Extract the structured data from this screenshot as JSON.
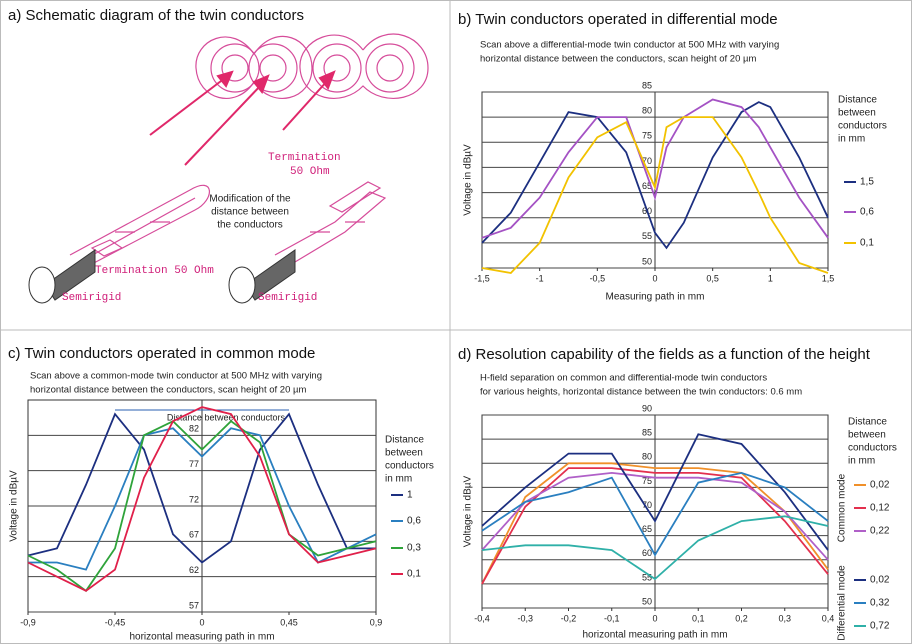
{
  "diagram": {
    "title": "a) Schematic diagram of the twin conductors",
    "labels": {
      "termination_top": [
        "Termination",
        "50 Ohm"
      ],
      "modification": [
        "Modification of the",
        "distance between",
        "the conductors"
      ],
      "termination_bottom": "Termination 50 Ohm",
      "semirigid_left": "Semirigid",
      "semirigid_right": "Semirigid"
    }
  },
  "chart_data": [
    {
      "type": "line",
      "title": "b) Twin conductors operated in differential mode",
      "subtitle": [
        "Scan above a differential-mode twin conductor at 500 MHz with varying",
        "horizontal distance between the conductors, scan height of 20 µm"
      ],
      "xlabel": "Measuring path in mm",
      "ylabel": "Voltage in dBµV",
      "xlim": [
        -1.5,
        1.5
      ],
      "ylim": [
        50,
        85
      ],
      "xticks": [
        {
          "value": -1.5,
          "label": "-1,5"
        },
        -1,
        {
          "value": -0.5,
          "label": "-0,5"
        },
        0,
        {
          "value": 0.5,
          "label": "0,5"
        },
        1,
        {
          "value": 1.5,
          "label": "1,5"
        }
      ],
      "yticks": [
        50,
        55,
        60,
        65,
        70,
        75,
        80,
        85
      ],
      "grid": true,
      "legend_title": [
        "Distance",
        "between",
        "conductors",
        "in mm"
      ],
      "x": [
        -1.5,
        -1.25,
        -1,
        -0.75,
        -0.5,
        -0.25,
        0,
        0.1,
        0.25,
        0.5,
        0.75,
        0.9,
        1,
        1.25,
        1.5
      ],
      "series": [
        {
          "name": "1,5",
          "color": "#1c2f80",
          "values": [
            55,
            61,
            71,
            81,
            80,
            73,
            57,
            54,
            59,
            72,
            81,
            83,
            82,
            72,
            60
          ]
        },
        {
          "name": "0,6",
          "color": "#a452c4",
          "values": [
            56,
            58,
            64,
            73,
            80,
            80,
            64,
            74,
            80,
            83.5,
            82,
            78,
            74,
            64,
            56
          ]
        },
        {
          "name": "0,1",
          "color": "#f2c200",
          "values": [
            50,
            49,
            55,
            68,
            76,
            79,
            66,
            78,
            80,
            80,
            72,
            65,
            60,
            51,
            49
          ]
        }
      ]
    },
    {
      "type": "line",
      "title": "c) Twin conductors operated in common mode",
      "subtitle": [
        "Scan above a common-mode twin conductor at 500 MHz with varying",
        "horizontal distance between the conductors, scan height of 20 µm"
      ],
      "xlabel": "horizontal measuring path in mm",
      "ylabel": "Voltage in dBµV",
      "annotation": "Distance between conductors",
      "xlim": [
        -0.9,
        0.9
      ],
      "ylim": [
        57,
        87
      ],
      "xticks": [
        {
          "value": -0.9,
          "label": "-0,9"
        },
        {
          "value": -0.45,
          "label": "-0,45"
        },
        0,
        {
          "value": 0.45,
          "label": "0,45"
        },
        {
          "value": 0.9,
          "label": "0,9"
        }
      ],
      "yticks": [
        57,
        62,
        67,
        72,
        77,
        82
      ],
      "grid": true,
      "legend_title": [
        "Distance",
        "between",
        "conductors",
        "in mm"
      ],
      "x": [
        -0.9,
        -0.75,
        -0.6,
        -0.45,
        -0.3,
        -0.15,
        0,
        0.15,
        0.3,
        0.45,
        0.6,
        0.75,
        0.9
      ],
      "series": [
        {
          "name": "1",
          "color": "#1c2f80",
          "values": [
            65,
            66,
            75,
            85,
            80,
            68,
            64,
            67,
            80,
            85,
            75,
            66,
            66
          ]
        },
        {
          "name": "0,6",
          "color": "#2a7fc0",
          "values": [
            64,
            64,
            63,
            72,
            82,
            83,
            79,
            83,
            82,
            72,
            64,
            66,
            68
          ]
        },
        {
          "name": "0,3",
          "color": "#2fa33a",
          "values": [
            65,
            63,
            60,
            66,
            82,
            84,
            80,
            84,
            81,
            68,
            65,
            66,
            67
          ]
        },
        {
          "name": "0,1",
          "color": "#e0204a",
          "values": [
            64,
            62,
            60,
            63,
            76,
            84,
            86,
            85,
            79,
            68,
            64,
            65,
            66
          ]
        }
      ]
    },
    {
      "type": "line",
      "title": "d) Resolution capability of the fields as a function of the height",
      "subtitle": [
        "H-field separation on common and differential-mode twin conductors",
        "for various heights, horizontal distance between the twin conductors: 0.6 mm"
      ],
      "xlabel": "horizontal measuring path in mm",
      "ylabel": "Voltage in dBµV",
      "xlim": [
        -0.4,
        0.4
      ],
      "ylim": [
        50,
        90
      ],
      "xticks": [
        {
          "value": -0.4,
          "label": "-0,4"
        },
        {
          "value": -0.3,
          "label": "-0,3"
        },
        {
          "value": -0.2,
          "label": "-0,2"
        },
        {
          "value": -0.1,
          "label": "-0,1"
        },
        0,
        {
          "value": 0.1,
          "label": "0,1"
        },
        {
          "value": 0.2,
          "label": "0,2"
        },
        {
          "value": 0.3,
          "label": "0,3"
        },
        {
          "value": 0.4,
          "label": "0,4"
        }
      ],
      "yticks": [
        50,
        55,
        60,
        65,
        70,
        75,
        80,
        85,
        90
      ],
      "grid": true,
      "legend_title": [
        "Distance",
        "between",
        "conductors",
        "in mm"
      ],
      "x": [
        -0.4,
        -0.3,
        -0.2,
        -0.1,
        0,
        0.1,
        0.2,
        0.3,
        0.4
      ],
      "series_groups": [
        {
          "name": "Common mode",
          "series": [
            {
              "name": "0,02",
              "color": "#f0902a",
              "values": [
                55,
                73,
                80,
                80,
                79,
                79,
                78,
                70,
                58
              ]
            },
            {
              "name": "0,12",
              "color": "#e3304e",
              "values": [
                55,
                71,
                79,
                79,
                78,
                78,
                77,
                68,
                57
              ]
            },
            {
              "name": "0,22",
              "color": "#b060c8",
              "values": [
                62,
                72,
                77,
                78,
                77,
                77,
                76,
                70,
                60
              ]
            }
          ]
        },
        {
          "name": "Differential mode",
          "series": [
            {
              "name": "0,02",
              "color": "#1c2f80",
              "values": [
                67,
                75,
                82,
                82,
                68,
                86,
                84,
                74,
                62
              ]
            },
            {
              "name": "0,32",
              "color": "#2a7fc0",
              "values": [
                66,
                72,
                74,
                77,
                61,
                76,
                78,
                75,
                68
              ]
            },
            {
              "name": "0,72",
              "color": "#2fb0a8",
              "values": [
                62,
                63,
                63,
                62,
                56,
                64,
                68,
                69,
                67
              ]
            }
          ]
        }
      ]
    }
  ]
}
